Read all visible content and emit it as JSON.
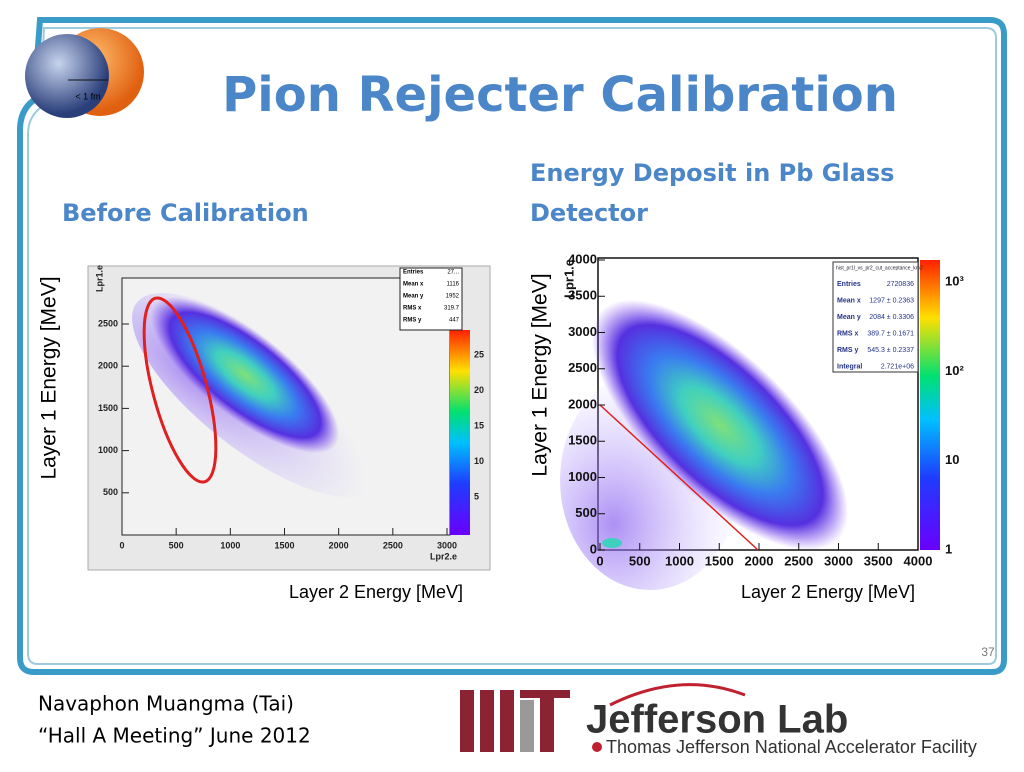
{
  "slide": {
    "title": "Pion Rejecter Calibration",
    "logo_scale": "< 1 fm",
    "left_plot": {
      "heading": "Before Calibration",
      "ylabel": "Layer 1 Energy [MeV]",
      "xlabel": "Layer 2 Energy [MeV]",
      "axis_x_title": "Lpr2.e",
      "axis_y_title": "Lpr1.e",
      "xticks": [
        0,
        500,
        1000,
        1500,
        2000,
        2500,
        3000
      ],
      "yticks": [
        500,
        1000,
        1500,
        2000,
        2500
      ],
      "colorbar_ticks": [
        5,
        10,
        15,
        20,
        25
      ],
      "stats": [
        [
          "Entries",
          "27..."
        ],
        [
          "Mean x",
          "1116"
        ],
        [
          "Mean y",
          "1952"
        ],
        [
          "RMS x",
          "319.7"
        ],
        [
          "RMS y",
          "447"
        ]
      ]
    },
    "right_plot": {
      "heading": "Energy Deposit in Pb Glass Detector",
      "ylabel": "Layer 1 Energy [MeV]",
      "xlabel": "Layer 2 Energy [MeV]",
      "axis_y_title": "Lpr1.e",
      "xticks": [
        0,
        500,
        1000,
        1500,
        2000,
        2500,
        3000,
        3500,
        4000
      ],
      "yticks": [
        0,
        500,
        1000,
        1500,
        2000,
        2500,
        3000,
        3500,
        4000
      ],
      "colorbar_ticks": [
        1,
        10,
        {
          "value": 100,
          "label": "10²"
        },
        {
          "value": 1000,
          "label": "10³"
        }
      ],
      "stats_title": "hist_pr1l_vs_pr2_cut_acceptance_km2",
      "stats": [
        [
          "Entries",
          "2720836"
        ],
        [
          "Mean x",
          "1297 ± 0.2363"
        ],
        [
          "Mean y",
          "2084 ± 0.3306"
        ],
        [
          "RMS x",
          "389.7 ± 0.1671"
        ],
        [
          "RMS y",
          "545.3 ± 0.2337"
        ],
        [
          "Integral",
          "2.721e+06"
        ]
      ]
    },
    "page_number": "37",
    "footer": {
      "author": "Navaphon Muangma (Tai)",
      "meeting": "“Hall A Meeting” June 2012",
      "lab_name": "Jefferson Lab",
      "lab_full": "Thomas Jefferson National Accelerator Facility"
    }
  }
}
